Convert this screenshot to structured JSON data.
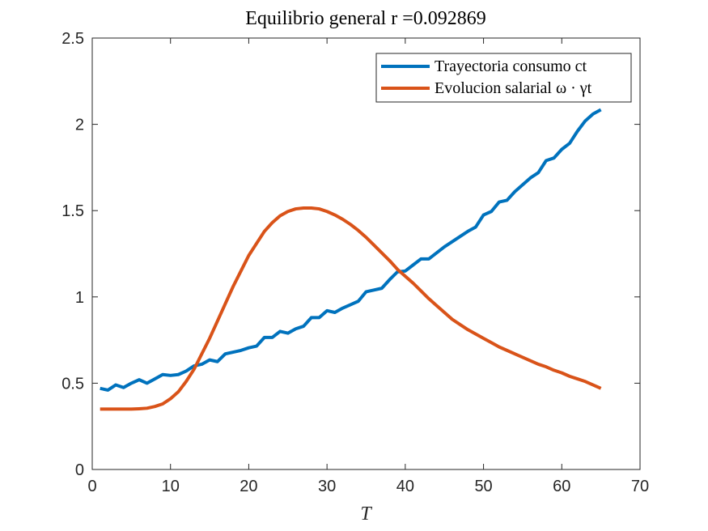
{
  "chart_data": {
    "type": "line",
    "title": "Equilibrio general r =0.092869",
    "xlabel": "T",
    "x": [
      1,
      2,
      3,
      4,
      5,
      6,
      7,
      8,
      9,
      10,
      11,
      12,
      13,
      14,
      15,
      16,
      17,
      18,
      19,
      20,
      21,
      22,
      23,
      24,
      25,
      26,
      27,
      28,
      29,
      30,
      31,
      32,
      33,
      34,
      35,
      36,
      37,
      38,
      39,
      40,
      41,
      42,
      43,
      44,
      45,
      46,
      47,
      48,
      49,
      50,
      51,
      52,
      53,
      54,
      55,
      56,
      57,
      58,
      59,
      60,
      61,
      62,
      63,
      64,
      65
    ],
    "series": [
      {
        "name": "Trayectoria consumo ct",
        "color": "#0072bd",
        "values": [
          0.47,
          0.46,
          0.49,
          0.475,
          0.5,
          0.52,
          0.5,
          0.525,
          0.55,
          0.545,
          0.55,
          0.57,
          0.6,
          0.61,
          0.635,
          0.625,
          0.67,
          0.68,
          0.69,
          0.705,
          0.715,
          0.765,
          0.765,
          0.8,
          0.79,
          0.815,
          0.83,
          0.88,
          0.88,
          0.92,
          0.91,
          0.935,
          0.955,
          0.975,
          1.03,
          1.04,
          1.05,
          1.1,
          1.145,
          1.15,
          1.185,
          1.22,
          1.22,
          1.255,
          1.29,
          1.32,
          1.35,
          1.38,
          1.405,
          1.475,
          1.495,
          1.55,
          1.56,
          1.61,
          1.65,
          1.69,
          1.72,
          1.79,
          1.805,
          1.855,
          1.89,
          1.96,
          2.02,
          2.06,
          2.085
        ]
      },
      {
        "name": "Evolucion salarial ω · γt",
        "color": "#d95319",
        "values": [
          0.35,
          0.35,
          0.35,
          0.35,
          0.35,
          0.352,
          0.355,
          0.365,
          0.38,
          0.41,
          0.45,
          0.51,
          0.58,
          0.67,
          0.76,
          0.86,
          0.96,
          1.06,
          1.15,
          1.24,
          1.31,
          1.38,
          1.43,
          1.47,
          1.495,
          1.51,
          1.515,
          1.515,
          1.51,
          1.495,
          1.475,
          1.45,
          1.42,
          1.385,
          1.345,
          1.3,
          1.255,
          1.21,
          1.16,
          1.12,
          1.08,
          1.035,
          0.99,
          0.95,
          0.91,
          0.87,
          0.84,
          0.81,
          0.785,
          0.76,
          0.735,
          0.71,
          0.69,
          0.67,
          0.65,
          0.63,
          0.61,
          0.595,
          0.575,
          0.56,
          0.54,
          0.525,
          0.51,
          0.49,
          0.47
        ]
      }
    ],
    "xlim": [
      0,
      70
    ],
    "xticks": [
      0,
      10,
      20,
      30,
      40,
      50,
      60,
      70
    ],
    "ylim": [
      0,
      2.5
    ],
    "yticks": [
      0,
      0.5,
      1,
      1.5,
      2,
      2.5
    ],
    "grid": false,
    "legend": "northeast"
  }
}
